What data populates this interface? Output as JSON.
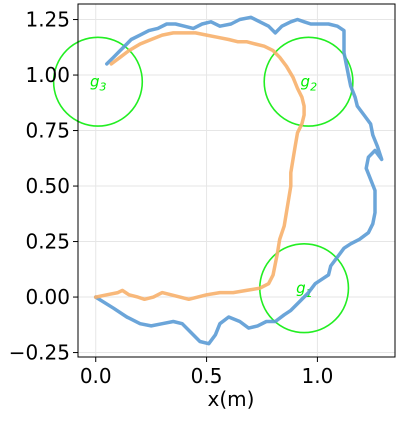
{
  "chart_data": {
    "type": "line",
    "xlabel": "x(m)",
    "ylabel": "",
    "xlim": [
      -0.08,
      1.35
    ],
    "ylim": [
      -0.27,
      1.32
    ],
    "grid": true,
    "x_ticks": [
      {
        "value": 0.0,
        "label": "0.0"
      },
      {
        "value": 0.5,
        "label": "0.5"
      },
      {
        "value": 1.0,
        "label": "1.0"
      }
    ],
    "y_ticks": [
      {
        "value": -0.25,
        "label": "−0.25"
      },
      {
        "value": 0.0,
        "label": "0.00"
      },
      {
        "value": 0.25,
        "label": "0.25"
      },
      {
        "value": 0.5,
        "label": "0.50"
      },
      {
        "value": 0.75,
        "label": "0.75"
      },
      {
        "value": 1.0,
        "label": "1.00"
      },
      {
        "value": 1.25,
        "label": "1.25"
      }
    ],
    "goals": [
      {
        "label_base": "g",
        "label_sub": "1",
        "cx": 0.94,
        "cy": 0.04,
        "r": 0.2
      },
      {
        "label_base": "g",
        "label_sub": "2",
        "cx": 0.96,
        "cy": 0.97,
        "r": 0.2
      },
      {
        "label_base": "g",
        "label_sub": "3",
        "cx": 0.01,
        "cy": 0.97,
        "r": 0.2
      }
    ],
    "series": [
      {
        "color": "#5b9bd5",
        "points": [
          [
            0.0,
            0.0
          ],
          [
            0.08,
            -0.05
          ],
          [
            0.14,
            -0.09
          ],
          [
            0.2,
            -0.12
          ],
          [
            0.25,
            -0.13
          ],
          [
            0.3,
            -0.12
          ],
          [
            0.35,
            -0.11
          ],
          [
            0.39,
            -0.12
          ],
          [
            0.43,
            -0.16
          ],
          [
            0.47,
            -0.2
          ],
          [
            0.51,
            -0.21
          ],
          [
            0.54,
            -0.17
          ],
          [
            0.56,
            -0.12
          ],
          [
            0.6,
            -0.09
          ],
          [
            0.65,
            -0.11
          ],
          [
            0.69,
            -0.14
          ],
          [
            0.73,
            -0.13
          ],
          [
            0.77,
            -0.11
          ],
          [
            0.81,
            -0.11
          ],
          [
            0.85,
            -0.08
          ],
          [
            0.88,
            -0.06
          ],
          [
            0.92,
            -0.02
          ],
          [
            0.96,
            0.02
          ],
          [
            0.99,
            0.06
          ],
          [
            1.02,
            0.08
          ],
          [
            1.05,
            0.1
          ],
          [
            1.06,
            0.14
          ],
          [
            1.09,
            0.18
          ],
          [
            1.12,
            0.22
          ],
          [
            1.15,
            0.24
          ],
          [
            1.19,
            0.26
          ],
          [
            1.23,
            0.29
          ],
          [
            1.25,
            0.33
          ],
          [
            1.26,
            0.38
          ],
          [
            1.26,
            0.43
          ],
          [
            1.26,
            0.48
          ],
          [
            1.24,
            0.53
          ],
          [
            1.22,
            0.58
          ],
          [
            1.23,
            0.63
          ],
          [
            1.26,
            0.66
          ],
          [
            1.29,
            0.62
          ],
          [
            1.27,
            0.68
          ],
          [
            1.25,
            0.73
          ],
          [
            1.24,
            0.78
          ],
          [
            1.21,
            0.82
          ],
          [
            1.18,
            0.86
          ],
          [
            1.17,
            0.9
          ],
          [
            1.15,
            0.95
          ],
          [
            1.14,
            1.0
          ],
          [
            1.13,
            1.05
          ],
          [
            1.12,
            1.1
          ],
          [
            1.12,
            1.15
          ],
          [
            1.12,
            1.2
          ],
          [
            1.09,
            1.22
          ],
          [
            1.05,
            1.23
          ],
          [
            1.01,
            1.23
          ],
          [
            0.97,
            1.23
          ],
          [
            0.94,
            1.24
          ],
          [
            0.91,
            1.25
          ],
          [
            0.88,
            1.24
          ],
          [
            0.84,
            1.22
          ],
          [
            0.81,
            1.19
          ],
          [
            0.78,
            1.22
          ],
          [
            0.74,
            1.24
          ],
          [
            0.7,
            1.26
          ],
          [
            0.65,
            1.25
          ],
          [
            0.61,
            1.23
          ],
          [
            0.56,
            1.22
          ],
          [
            0.52,
            1.24
          ],
          [
            0.48,
            1.23
          ],
          [
            0.44,
            1.21
          ],
          [
            0.4,
            1.22
          ],
          [
            0.36,
            1.23
          ],
          [
            0.32,
            1.23
          ],
          [
            0.28,
            1.21
          ],
          [
            0.24,
            1.2
          ],
          [
            0.2,
            1.18
          ],
          [
            0.16,
            1.16
          ],
          [
            0.14,
            1.14
          ],
          [
            0.11,
            1.11
          ],
          [
            0.08,
            1.08
          ],
          [
            0.05,
            1.05
          ]
        ]
      },
      {
        "color": "#f7b06b",
        "points": [
          [
            0.0,
            0.0
          ],
          [
            0.05,
            0.01
          ],
          [
            0.1,
            0.02
          ],
          [
            0.12,
            0.03
          ],
          [
            0.15,
            0.01
          ],
          [
            0.19,
            0.0
          ],
          [
            0.22,
            -0.01
          ],
          [
            0.26,
            0.0
          ],
          [
            0.3,
            0.02
          ],
          [
            0.34,
            0.01
          ],
          [
            0.38,
            0.0
          ],
          [
            0.42,
            -0.01
          ],
          [
            0.46,
            0.0
          ],
          [
            0.5,
            0.01
          ],
          [
            0.56,
            0.02
          ],
          [
            0.62,
            0.02
          ],
          [
            0.68,
            0.03
          ],
          [
            0.74,
            0.04
          ],
          [
            0.78,
            0.06
          ],
          [
            0.8,
            0.1
          ],
          [
            0.81,
            0.15
          ],
          [
            0.82,
            0.2
          ],
          [
            0.83,
            0.26
          ],
          [
            0.85,
            0.32
          ],
          [
            0.86,
            0.38
          ],
          [
            0.87,
            0.44
          ],
          [
            0.88,
            0.5
          ],
          [
            0.88,
            0.56
          ],
          [
            0.89,
            0.62
          ],
          [
            0.9,
            0.68
          ],
          [
            0.91,
            0.74
          ],
          [
            0.93,
            0.78
          ],
          [
            0.94,
            0.82
          ],
          [
            0.94,
            0.86
          ],
          [
            0.93,
            0.9
          ],
          [
            0.91,
            0.94
          ],
          [
            0.89,
            0.99
          ],
          [
            0.86,
            1.04
          ],
          [
            0.83,
            1.08
          ],
          [
            0.8,
            1.11
          ],
          [
            0.76,
            1.13
          ],
          [
            0.72,
            1.14
          ],
          [
            0.68,
            1.15
          ],
          [
            0.64,
            1.15
          ],
          [
            0.6,
            1.16
          ],
          [
            0.55,
            1.17
          ],
          [
            0.5,
            1.18
          ],
          [
            0.45,
            1.19
          ],
          [
            0.4,
            1.19
          ],
          [
            0.35,
            1.19
          ],
          [
            0.3,
            1.18
          ],
          [
            0.25,
            1.16
          ],
          [
            0.2,
            1.14
          ],
          [
            0.15,
            1.11
          ],
          [
            0.11,
            1.08
          ],
          [
            0.07,
            1.05
          ]
        ]
      }
    ]
  }
}
